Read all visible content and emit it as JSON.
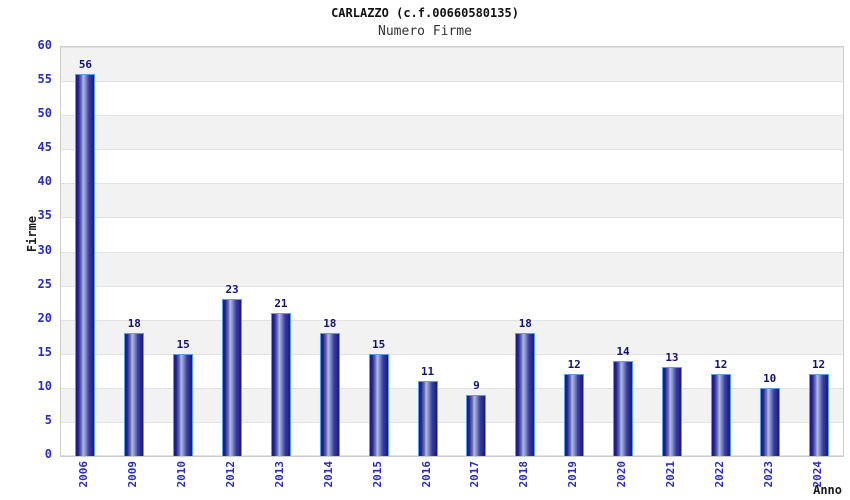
{
  "header": {
    "title": "CARLAZZO (c.f.00660580135)",
    "subtitle": "Numero Firme"
  },
  "chart_data": {
    "type": "bar",
    "title": "CARLAZZO (c.f.00660580135)",
    "subtitle": "Numero Firme",
    "xlabel": "Anno",
    "ylabel": "Firme",
    "categories": [
      "2006",
      "2009",
      "2010",
      "2012",
      "2013",
      "2014",
      "2015",
      "2016",
      "2017",
      "2018",
      "2019",
      "2020",
      "2021",
      "2022",
      "2023",
      "2024"
    ],
    "values": [
      56,
      18,
      15,
      23,
      21,
      18,
      15,
      11,
      9,
      18,
      12,
      14,
      13,
      12,
      10,
      12
    ],
    "ylim": [
      0,
      60
    ],
    "ytick_step": 5,
    "yticks": [
      0,
      5,
      10,
      15,
      20,
      25,
      30,
      35,
      40,
      45,
      50,
      55,
      60
    ],
    "grid": "horizontal",
    "legend": false,
    "background_bands": true,
    "colors": {
      "tick_label": "#2a2ac8",
      "value_label": "#13136e",
      "bar_edge_dark": "#191980",
      "bar_center_light": "#b2bae6",
      "bar_border": "#55a0e8",
      "band_gray": "#f2f2f2",
      "band_white": "#ffffff",
      "grid_line": "#e2e2e2",
      "plot_border": "#cccccc",
      "title_color": "#111111",
      "subtitle_color": "#333333",
      "axis_title_color": "#1a1a1a"
    }
  }
}
